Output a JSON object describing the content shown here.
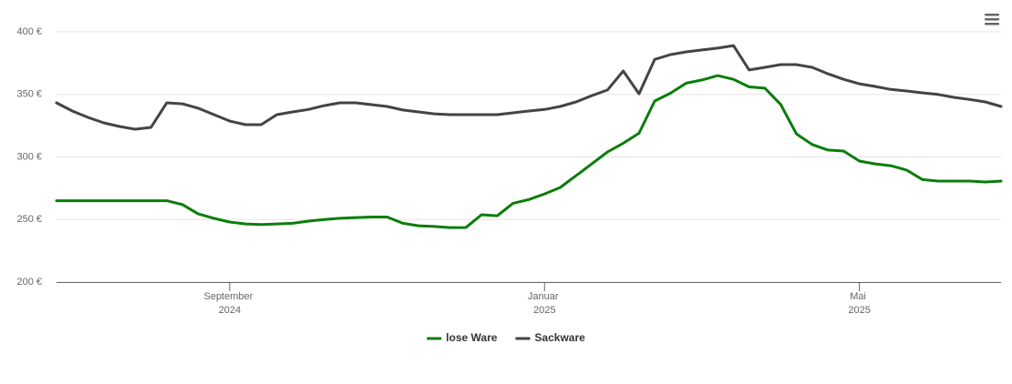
{
  "chart_data": {
    "type": "line",
    "categories": [
      null,
      null,
      null,
      null,
      null,
      null,
      null,
      null,
      null,
      null,
      null,
      "September 2024",
      null,
      null,
      null,
      null,
      null,
      null,
      null,
      null,
      null,
      null,
      null,
      null,
      null,
      null,
      null,
      null,
      null,
      null,
      null,
      "Januar 2025",
      null,
      null,
      null,
      null,
      null,
      null,
      null,
      null,
      null,
      null,
      null,
      null,
      null,
      null,
      null,
      null,
      null,
      null,
      null,
      "Mai 2025",
      null,
      null,
      null,
      null,
      null,
      null,
      null,
      null,
      null
    ],
    "series": [
      {
        "name": "lose Ware",
        "color": "#0a7d0a",
        "values": [
          265,
          265,
          265,
          265,
          265,
          265,
          265,
          265,
          262,
          254.5,
          251,
          248,
          246.5,
          246,
          246.5,
          247,
          248.7,
          250,
          251,
          251.6,
          252,
          252,
          247,
          245,
          244.4,
          243.6,
          243.6,
          253.8,
          253,
          263,
          266,
          270.5,
          275.6,
          285,
          294.5,
          304,
          311,
          319,
          344.7,
          351,
          359,
          361.5,
          365,
          362,
          356,
          355,
          342,
          318.5,
          310,
          305.5,
          304.7,
          296.7,
          294.5,
          293,
          289.5,
          282,
          280.7,
          280.7,
          280.7,
          280,
          280.7
        ]
      },
      {
        "name": "Sackware",
        "color": "#434348",
        "values": [
          343.3,
          336.7,
          331.6,
          327.3,
          324.4,
          322.2,
          323.6,
          343.3,
          342.5,
          339,
          333.8,
          328.7,
          325.8,
          325.8,
          333.8,
          336,
          338,
          341,
          343.3,
          343.3,
          341.8,
          340.4,
          337.5,
          336,
          334.5,
          333.8,
          333.8,
          333.8,
          333.8,
          335.3,
          336.7,
          338,
          340.4,
          344,
          349,
          353.5,
          368.7,
          350.5,
          378,
          381.8,
          384,
          385.5,
          387,
          389,
          369.5,
          371.6,
          373.8,
          373.8,
          371.6,
          366.5,
          362,
          358.5,
          356.4,
          354,
          352.7,
          351.3,
          350,
          347.6,
          346,
          344,
          340.4
        ]
      }
    ],
    "ylim": [
      200,
      400
    ],
    "yticks": [
      {
        "value": 200,
        "label": "200 €"
      },
      {
        "value": 250,
        "label": "250 €"
      },
      {
        "value": 300,
        "label": "300 €"
      },
      {
        "value": 350,
        "label": "350 €"
      },
      {
        "value": 400,
        "label": "400 €"
      }
    ],
    "grid": true,
    "legend": "bottom"
  }
}
